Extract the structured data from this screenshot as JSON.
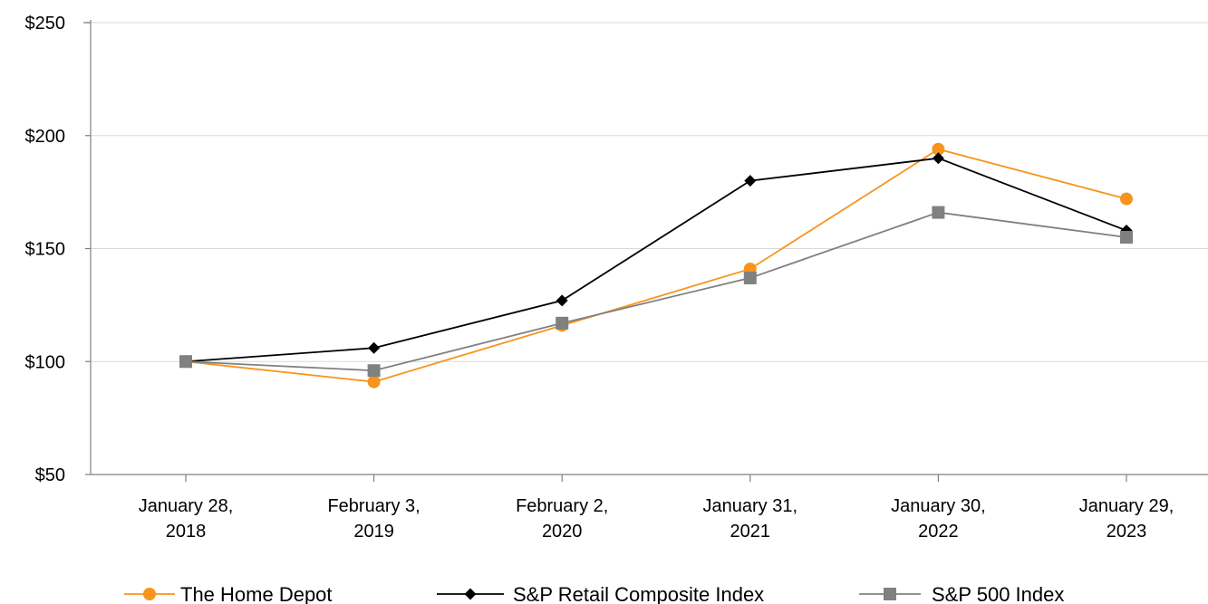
{
  "chart_data": {
    "type": "line",
    "categories": [
      [
        "January 28,",
        "2018"
      ],
      [
        "February 3,",
        "2019"
      ],
      [
        "February 2,",
        "2020"
      ],
      [
        "January 31,",
        "2021"
      ],
      [
        "January 30,",
        "2022"
      ],
      [
        "January 29,",
        "2023"
      ]
    ],
    "y_ticks": [
      "$50",
      "$100",
      "$150",
      "$200",
      "$250"
    ],
    "y_tick_values": [
      50,
      100,
      150,
      200,
      250
    ],
    "ylim": [
      50,
      250
    ],
    "grid": true,
    "legend_position": "bottom",
    "series": [
      {
        "name": "The Home Depot",
        "color": "#F7941D",
        "marker": "circle",
        "values": [
          100,
          91,
          116,
          141,
          194,
          172
        ]
      },
      {
        "name": "S&P Retail Composite Index",
        "color": "#000000",
        "marker": "diamond",
        "values": [
          100,
          106,
          127,
          180,
          190,
          158
        ]
      },
      {
        "name": "S&P 500 Index",
        "color": "#808080",
        "marker": "square",
        "values": [
          100,
          96,
          117,
          137,
          166,
          155
        ]
      }
    ]
  }
}
